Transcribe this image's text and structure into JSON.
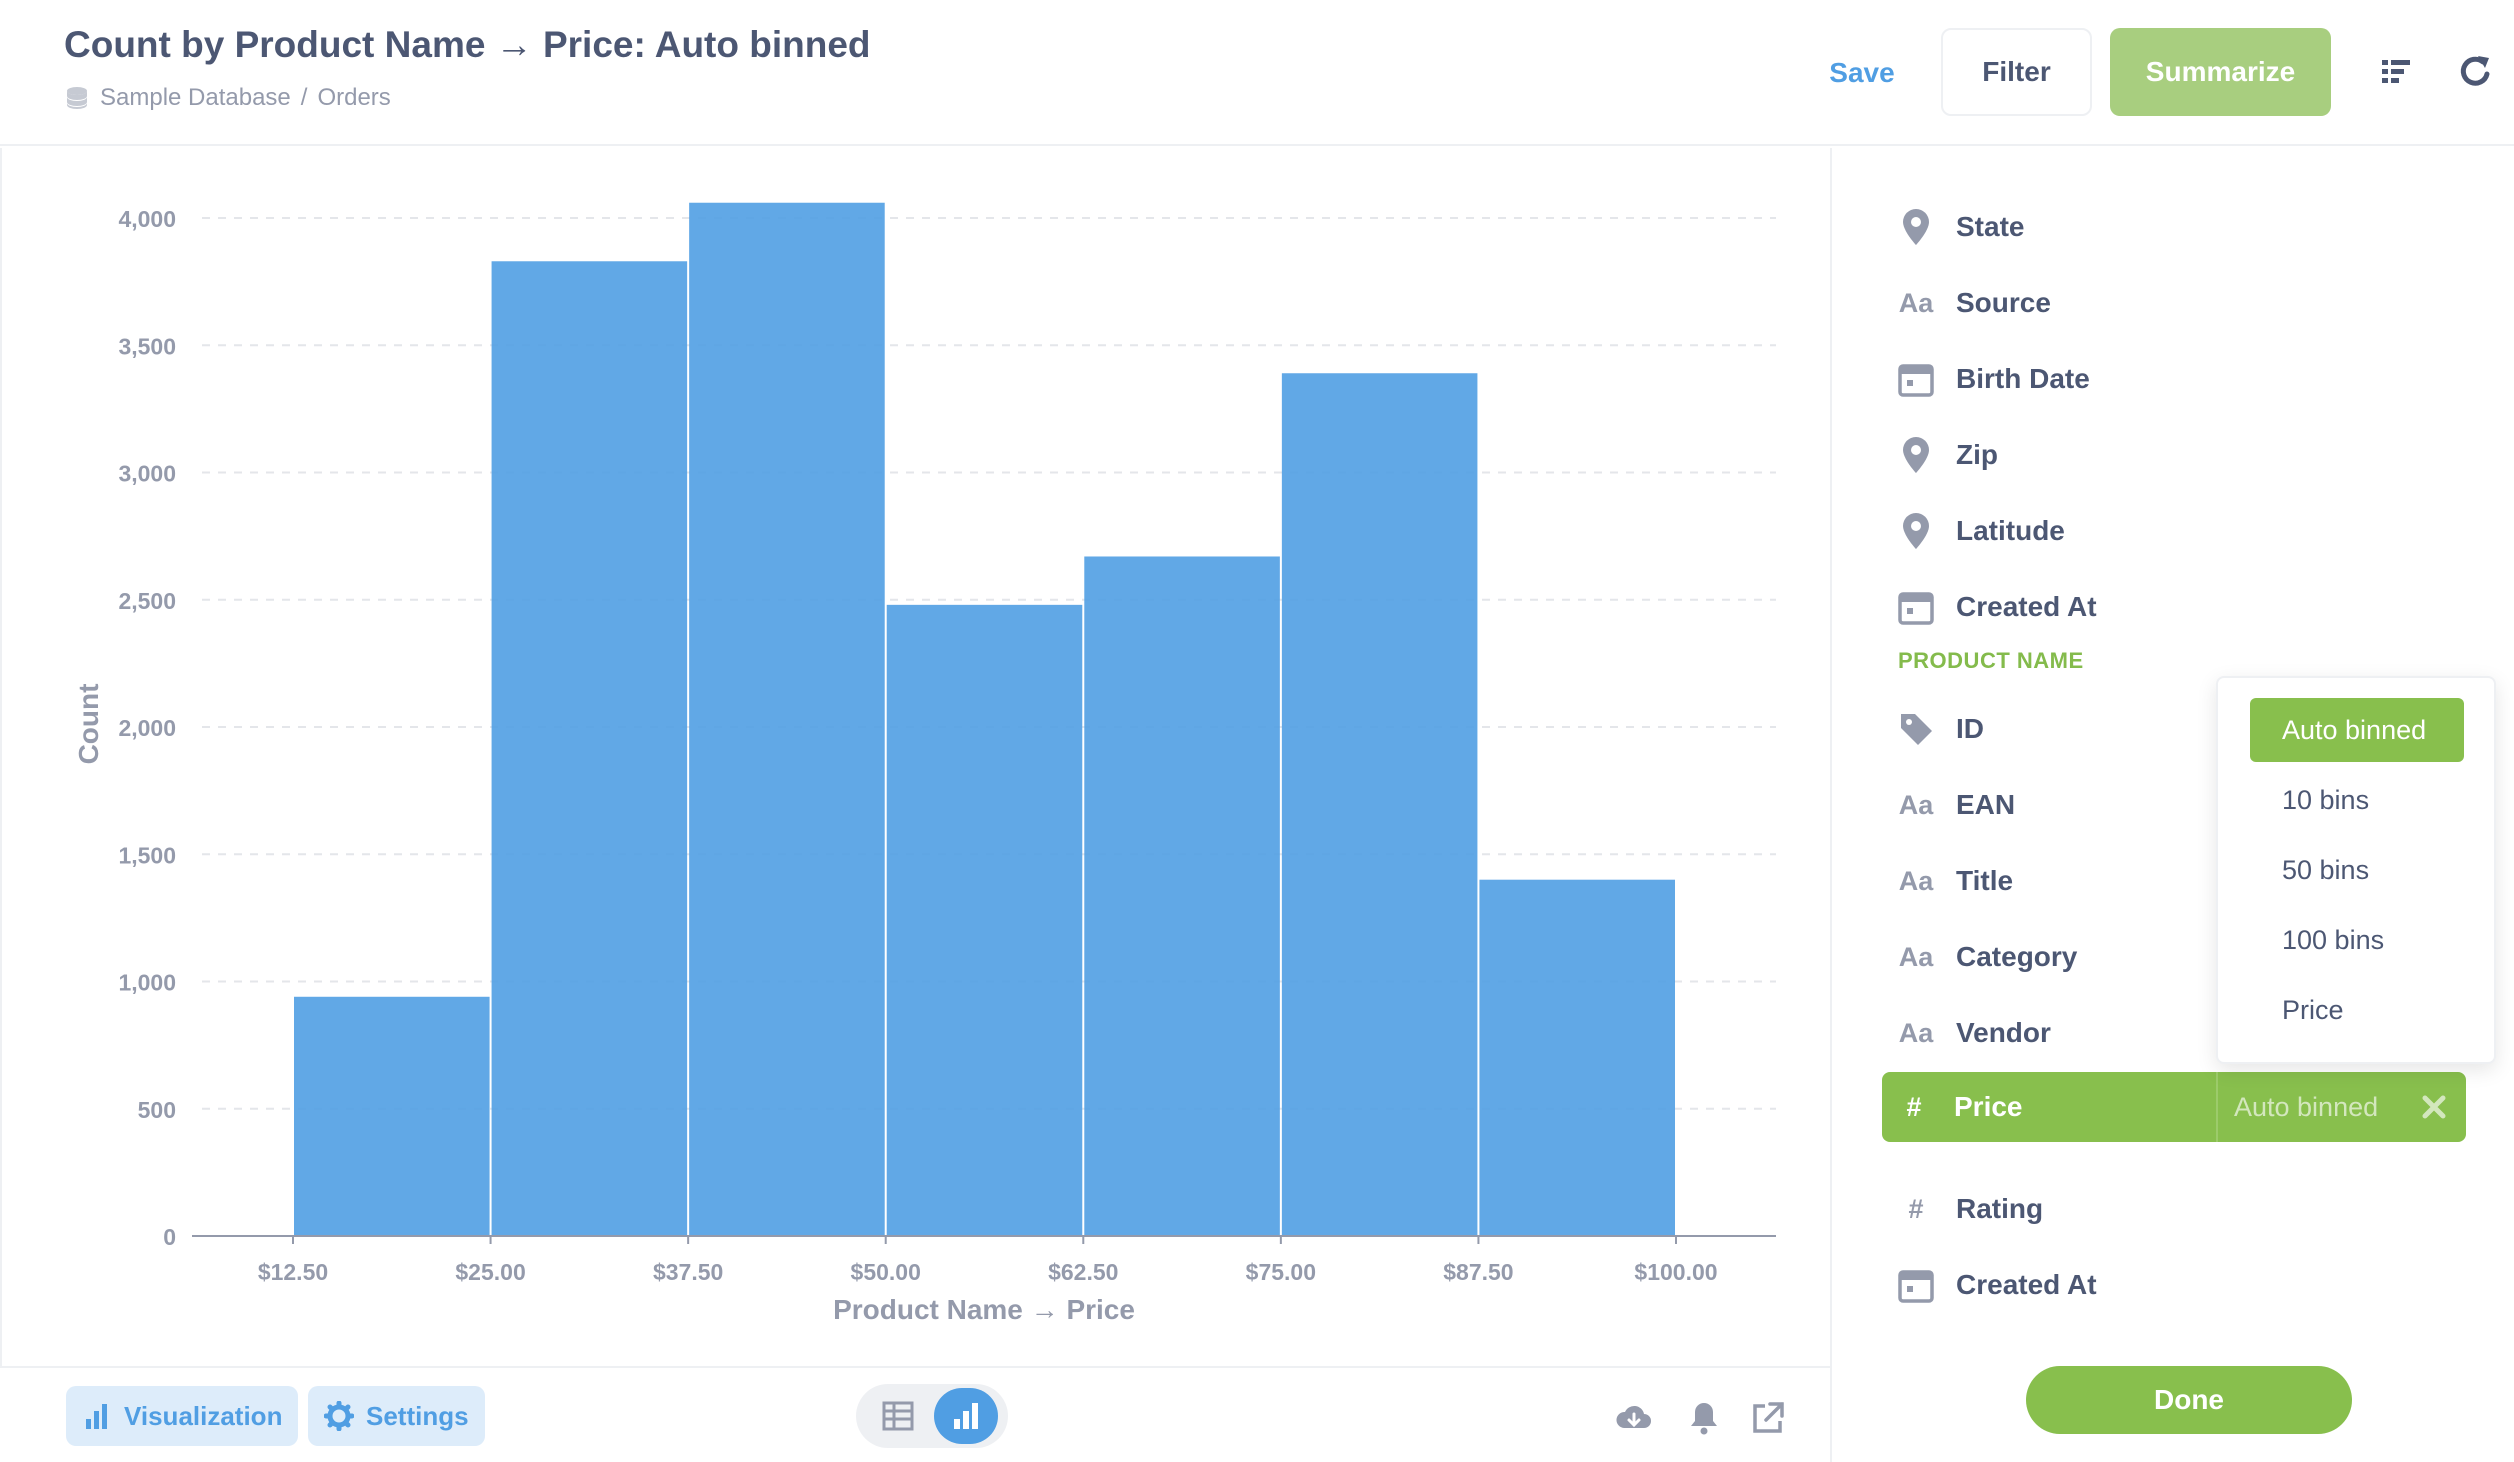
{
  "header": {
    "title": "Count by Product Name → Price: Auto binned",
    "breadcrumb": {
      "database": "Sample Database",
      "separator": "/",
      "table": "Orders"
    },
    "save_label": "Save",
    "filter_label": "Filter",
    "summarize_label": "Summarize"
  },
  "chart_data": {
    "type": "bar",
    "categories": [
      "$12.50",
      "$25.00",
      "$37.50",
      "$50.00",
      "$62.50",
      "$75.00",
      "$87.50",
      "$100.00"
    ],
    "bins": [
      {
        "start": 12.5,
        "end": 25.0,
        "value": 940
      },
      {
        "start": 25.0,
        "end": 37.5,
        "value": 3830
      },
      {
        "start": 37.5,
        "end": 50.0,
        "value": 4060
      },
      {
        "start": 50.0,
        "end": 62.5,
        "value": 2480
      },
      {
        "start": 62.5,
        "end": 75.0,
        "value": 2670
      },
      {
        "start": 75.0,
        "end": 87.5,
        "value": 3390
      },
      {
        "start": 87.5,
        "end": 100.0,
        "value": 1400
      }
    ],
    "xlabel": "Product Name → Price",
    "ylabel": "Count",
    "ylim": [
      0,
      4000
    ],
    "yticks": [
      "0",
      "500",
      "1,000",
      "1,500",
      "2,000",
      "2,500",
      "3,000",
      "3,500",
      "4,000"
    ],
    "bar_color": "#509ee3",
    "grid": true
  },
  "footer": {
    "visualization_label": "Visualization",
    "settings_label": "Settings"
  },
  "sidebar": {
    "fields_top": [
      {
        "icon": "location-pin-icon",
        "label": "State"
      },
      {
        "icon": "text-icon",
        "label": "Source"
      },
      {
        "icon": "calendar-icon",
        "label": "Birth Date"
      },
      {
        "icon": "location-pin-icon",
        "label": "Zip"
      },
      {
        "icon": "location-pin-icon",
        "label": "Latitude"
      },
      {
        "icon": "calendar-icon",
        "label": "Created At"
      }
    ],
    "section_label": "PRODUCT NAME",
    "fields_product": [
      {
        "icon": "tag-icon",
        "label": "ID"
      },
      {
        "icon": "text-icon",
        "label": "EAN"
      },
      {
        "icon": "text-icon",
        "label": "Title"
      },
      {
        "icon": "text-icon",
        "label": "Category"
      },
      {
        "icon": "text-icon",
        "label": "Vendor"
      }
    ],
    "selected_field": {
      "icon": "number-icon",
      "label": "Price",
      "binning": "Auto binned"
    },
    "fields_after": [
      {
        "icon": "number-icon",
        "label": "Rating"
      },
      {
        "icon": "calendar-icon",
        "label": "Created At"
      }
    ],
    "binning_options": [
      "Auto binned",
      "10 bins",
      "50 bins",
      "100 bins",
      "Price"
    ],
    "selected_option": "Auto binned",
    "done_label": "Done",
    "text_icon_glyph": "Aa",
    "number_icon_glyph": "#"
  },
  "colors": {
    "brand": "#509ee3",
    "summarize": "#88bf4d",
    "text": "#4c5773",
    "muted": "#949aab"
  }
}
